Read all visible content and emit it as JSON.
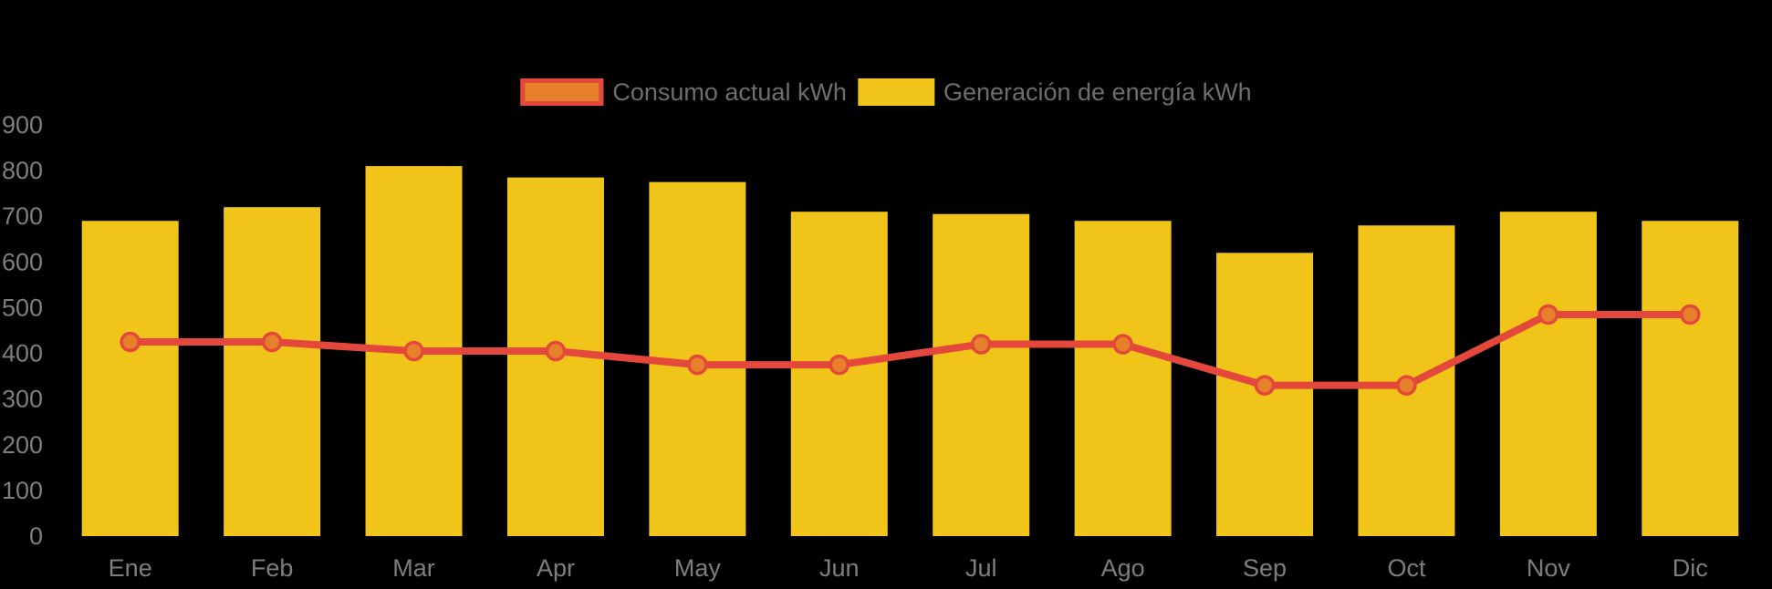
{
  "chart_data": {
    "type": "bar",
    "subtype": "bar-with-line-overlay",
    "title": "",
    "xlabel": "",
    "ylabel": "",
    "categories": [
      "Ene",
      "Feb",
      "Mar",
      "Apr",
      "May",
      "Jun",
      "Jul",
      "Ago",
      "Sep",
      "Oct",
      "Nov",
      "Dic"
    ],
    "series": [
      {
        "name": "Consumo actual kWh",
        "type": "line",
        "values": [
          425,
          425,
          405,
          405,
          375,
          375,
          420,
          420,
          330,
          330,
          485,
          485
        ],
        "color": "#E4483C",
        "point_fill": "#E6802A",
        "point_border": "#E4483C"
      },
      {
        "name": "Generación de energía kWh",
        "type": "bar",
        "values": [
          690,
          720,
          810,
          785,
          775,
          710,
          705,
          690,
          620,
          680,
          710,
          690
        ],
        "color": "#F0C419"
      }
    ],
    "ylim": [
      0,
      900
    ],
    "yticks": [
      0,
      100,
      200,
      300,
      400,
      500,
      600,
      700,
      800,
      900
    ],
    "grid": false,
    "legend_position": "top",
    "background": "#000000"
  },
  "legend": {
    "items": [
      {
        "label": "Consumo actual kWh",
        "swatch_fill": "#E6802A",
        "swatch_border": "#E4483C"
      },
      {
        "label": "Generación de energía kWh",
        "swatch_fill": "#F0C419",
        "swatch_border": "#F0C419"
      }
    ]
  },
  "colors": {
    "background": "#000000",
    "bar": "#F0C419",
    "line": "#E4483C",
    "point_fill": "#E6802A",
    "point_border": "#E4483C",
    "legend_text": "#6E6E6E",
    "axis_text": "#7E7E7E"
  }
}
